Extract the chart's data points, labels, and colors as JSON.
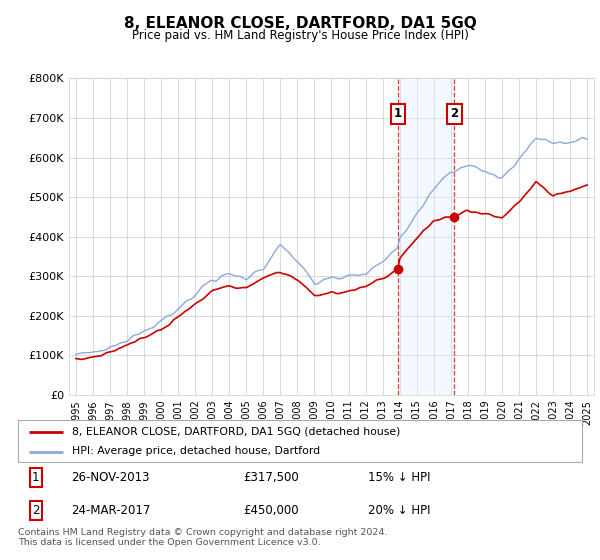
{
  "title": "8, ELEANOR CLOSE, DARTFORD, DA1 5GQ",
  "subtitle": "Price paid vs. HM Land Registry's House Price Index (HPI)",
  "ylim": [
    0,
    800000
  ],
  "yticks": [
    0,
    100000,
    200000,
    300000,
    400000,
    500000,
    600000,
    700000,
    800000
  ],
  "ytick_labels": [
    "£0",
    "£100K",
    "£200K",
    "£300K",
    "£400K",
    "£500K",
    "£600K",
    "£700K",
    "£800K"
  ],
  "sale1_date": 2013.9,
  "sale1_price": 317500,
  "sale1_label": "1",
  "sale1_display": "26-NOV-2013",
  "sale1_price_display": "£317,500",
  "sale1_hpi": "15% ↓ HPI",
  "sale2_date": 2017.2,
  "sale2_price": 450000,
  "sale2_label": "2",
  "sale2_display": "24-MAR-2017",
  "sale2_price_display": "£450,000",
  "sale2_hpi": "20% ↓ HPI",
  "legend_label_red": "8, ELEANOR CLOSE, DARTFORD, DA1 5GQ (detached house)",
  "legend_label_blue": "HPI: Average price, detached house, Dartford",
  "footer": "Contains HM Land Registry data © Crown copyright and database right 2024.\nThis data is licensed under the Open Government Licence v3.0.",
  "red_color": "#cc0000",
  "blue_color": "#88aadd",
  "shade_color": "#ddeeff",
  "bg_color": "#ffffff",
  "grid_color": "#cccccc",
  "hpi_years": [
    1995,
    1996,
    1997,
    1998,
    1999,
    2000,
    2001,
    2002,
    2003,
    2004,
    2005,
    2006,
    2007,
    2008,
    2009,
    2010,
    2011,
    2012,
    2013,
    2013.9,
    2014,
    2015,
    2016,
    2017,
    2017.2,
    2018,
    2019,
    2020,
    2021,
    2022,
    2023,
    2024,
    2025
  ],
  "hpi_vals": [
    100000,
    108000,
    120000,
    138000,
    158000,
    185000,
    215000,
    252000,
    295000,
    310000,
    295000,
    320000,
    380000,
    340000,
    282000,
    295000,
    300000,
    308000,
    340000,
    372000,
    395000,
    460000,
    520000,
    565000,
    568000,
    580000,
    565000,
    545000,
    595000,
    650000,
    635000,
    640000,
    650000
  ],
  "red_years": [
    1995,
    1996,
    1997,
    1998,
    1999,
    2000,
    2001,
    2002,
    2003,
    2004,
    2005,
    2006,
    2007,
    2008,
    2009,
    2010,
    2011,
    2012,
    2013,
    2013.9,
    2014,
    2015,
    2016,
    2017,
    2017.2,
    2018,
    2019,
    2020,
    2021,
    2022,
    2023,
    2024,
    2025
  ],
  "red_vals": [
    88000,
    95000,
    108000,
    125000,
    145000,
    165000,
    195000,
    228000,
    265000,
    275000,
    268000,
    295000,
    310000,
    290000,
    248000,
    258000,
    262000,
    275000,
    295000,
    317500,
    345000,
    395000,
    440000,
    455000,
    450000,
    465000,
    458000,
    448000,
    490000,
    540000,
    505000,
    515000,
    530000
  ]
}
